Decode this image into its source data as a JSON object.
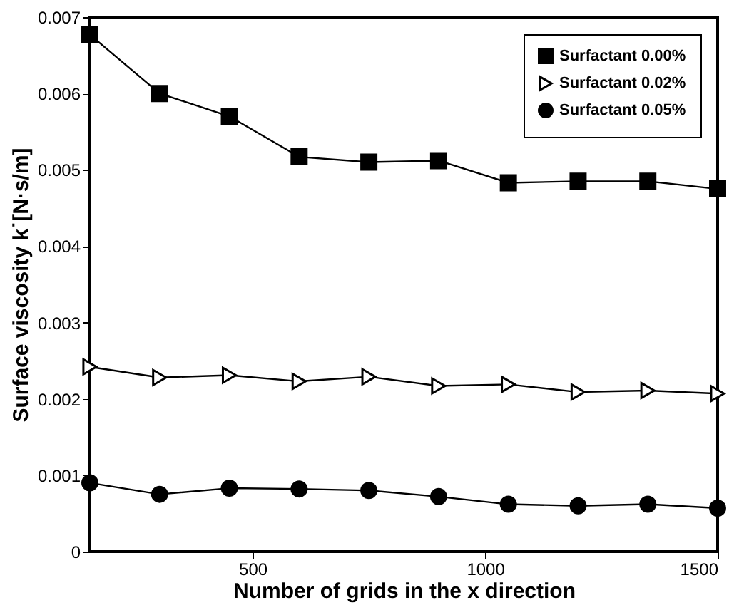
{
  "chart_data": {
    "type": "line",
    "xlabel": "Number of grids in the x direction",
    "ylabel": "Surface viscosity k˙[N·s/m]",
    "x": [
      150,
      300,
      450,
      600,
      750,
      900,
      1050,
      1200,
      1350,
      1500
    ],
    "series": [
      {
        "name": "Surfactant 0.00%",
        "color": "#000000",
        "marker": "square",
        "values": [
          0.00677,
          0.006,
          0.0057,
          0.00517,
          0.0051,
          0.00512,
          0.00483,
          0.00485,
          0.00485,
          0.00475
        ]
      },
      {
        "name": "Surfactant 0.02%",
        "color": "#000000",
        "marker": "triangle",
        "values": [
          0.00242,
          0.00228,
          0.00231,
          0.00223,
          0.00229,
          0.00217,
          0.00219,
          0.00209,
          0.00211,
          0.00207
        ]
      },
      {
        "name": "Surfactant 0.05%",
        "color": "#000000",
        "marker": "circle",
        "values": [
          0.0009,
          0.00075,
          0.00083,
          0.00082,
          0.0008,
          0.00072,
          0.00062,
          0.0006,
          0.00062,
          0.00057
        ]
      }
    ],
    "xlim": [
      150,
      1500
    ],
    "xticks": [
      500,
      1000,
      1500
    ],
    "ylim": [
      0,
      0.007
    ],
    "yticks": [
      0,
      0.001,
      0.002,
      0.003,
      0.004,
      0.005,
      0.006,
      0.007
    ],
    "grid": false,
    "legend": "top right",
    "line_style": "solid"
  }
}
